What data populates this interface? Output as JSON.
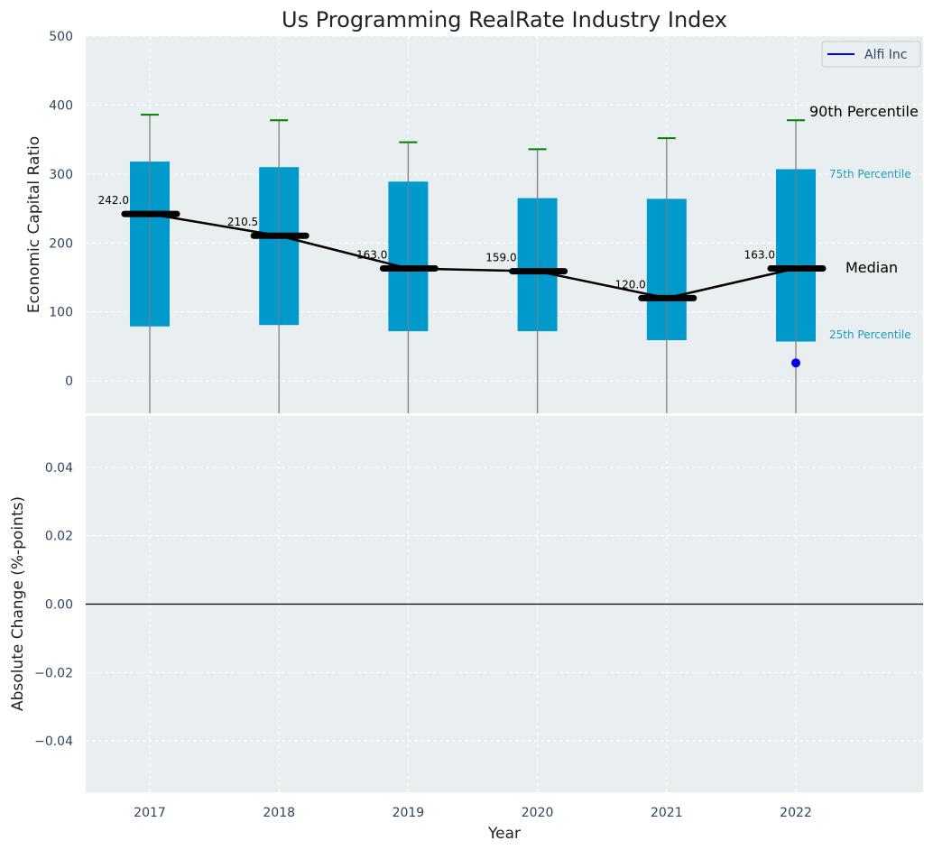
{
  "chart_data": [
    {
      "type": "box",
      "title": "Us Programming RealRate Industry Index",
      "ylabel": "Economic Capital Ratio",
      "ylim": [
        -47,
        500
      ],
      "yticks": [
        0,
        100,
        200,
        300,
        400,
        500
      ],
      "categories": [
        "2017",
        "2018",
        "2019",
        "2020",
        "2021",
        "2022"
      ],
      "boxes": [
        {
          "year": "2017",
          "p25": 79,
          "p75": 318,
          "median": 242.0,
          "p90": 386,
          "median_label": "242.0"
        },
        {
          "year": "2018",
          "p25": 81,
          "p75": 310,
          "median": 210.5,
          "p90": 378,
          "median_label": "210.5"
        },
        {
          "year": "2019",
          "p25": 72,
          "p75": 289,
          "median": 163.0,
          "p90": 346,
          "median_label": "163.0"
        },
        {
          "year": "2020",
          "p25": 72,
          "p75": 265,
          "median": 159.0,
          "p90": 336,
          "median_label": "159.0"
        },
        {
          "year": "2021",
          "p25": 59,
          "p75": 264,
          "median": 120.0,
          "p90": 352,
          "median_label": "120.0"
        },
        {
          "year": "2022",
          "p25": 57,
          "p75": 307,
          "median": 163.0,
          "p90": 378,
          "median_label": "163.0"
        }
      ],
      "company_series": {
        "name": "Alfi Inc",
        "points": [
          {
            "year": "2022",
            "value": 26
          }
        ]
      },
      "annotations": {
        "p90": "90th Percentile",
        "p75": "75th Percentile",
        "median": "Median",
        "p25": "25th Percentile"
      },
      "legend": {
        "entries": [
          "Alfi Inc"
        ],
        "placement": "top-right"
      },
      "grid": true
    },
    {
      "type": "line",
      "ylabel": "Absolute Change (%-points)",
      "xlabel": "Year",
      "ylim": [
        -0.055,
        0.055
      ],
      "yticks": [
        -0.04,
        -0.02,
        0.0,
        0.02,
        0.04
      ],
      "ytick_labels": [
        "−0.04",
        "−0.02",
        "0.00",
        "0.02",
        "0.04"
      ],
      "categories": [
        "2017",
        "2018",
        "2019",
        "2020",
        "2021",
        "2022"
      ],
      "reference_line": 0,
      "grid": true
    }
  ],
  "colors": {
    "panel_bg": "#e9eef0",
    "box": "#0099cc",
    "whisker": "#808080",
    "cap": "#008000",
    "median": "#000000",
    "company": "#0000ee",
    "axis_text": "#2f4560",
    "pctl_label": "#1a9dbb"
  }
}
